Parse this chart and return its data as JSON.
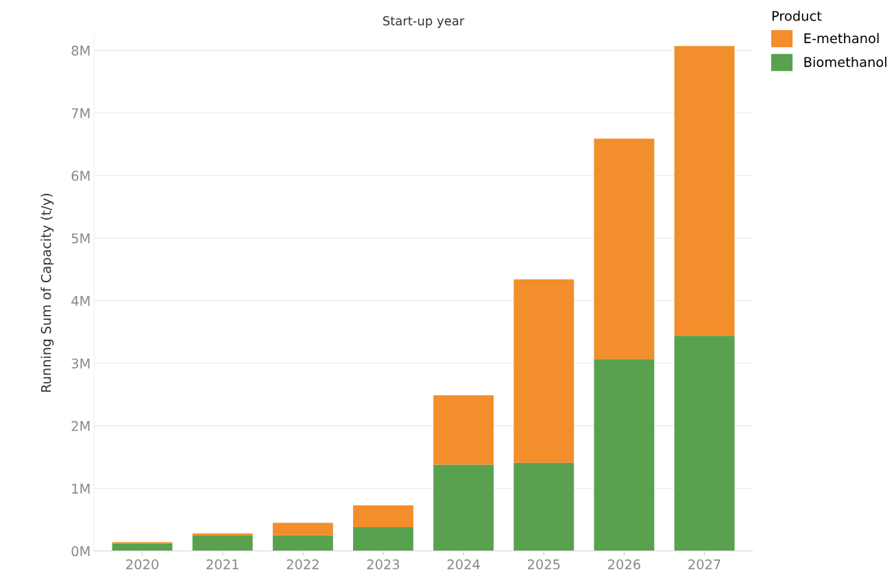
{
  "chart_data": {
    "type": "bar",
    "stacked": true,
    "xlabel": "Start-up year",
    "ylabel": "Running Sum of Capacity (t/y)",
    "legend_title": "Product",
    "legend": "top right",
    "categories": [
      "2020",
      "2021",
      "2022",
      "2023",
      "2024",
      "2025",
      "2026",
      "2027"
    ],
    "series": [
      {
        "name": "Biomethanol",
        "color": "#59a14f",
        "values": [
          120000,
          250000,
          250000,
          380000,
          1380000,
          1410000,
          3070000,
          3440000
        ]
      },
      {
        "name": "E-methanol",
        "color": "#f28e2b",
        "values": [
          20000,
          30000,
          200000,
          350000,
          1110000,
          2930000,
          3520000,
          4630000
        ]
      }
    ],
    "ylim": [
      0,
      8250000
    ],
    "yticks": [
      {
        "value": 0,
        "label": "0M"
      },
      {
        "value": 1000000,
        "label": "1M"
      },
      {
        "value": 2000000,
        "label": "2M"
      },
      {
        "value": 3000000,
        "label": "3M"
      },
      {
        "value": 4000000,
        "label": "4M"
      },
      {
        "value": 5000000,
        "label": "5M"
      },
      {
        "value": 6000000,
        "label": "6M"
      },
      {
        "value": 7000000,
        "label": "7M"
      },
      {
        "value": 8000000,
        "label": "8M"
      }
    ],
    "grid": "y"
  }
}
